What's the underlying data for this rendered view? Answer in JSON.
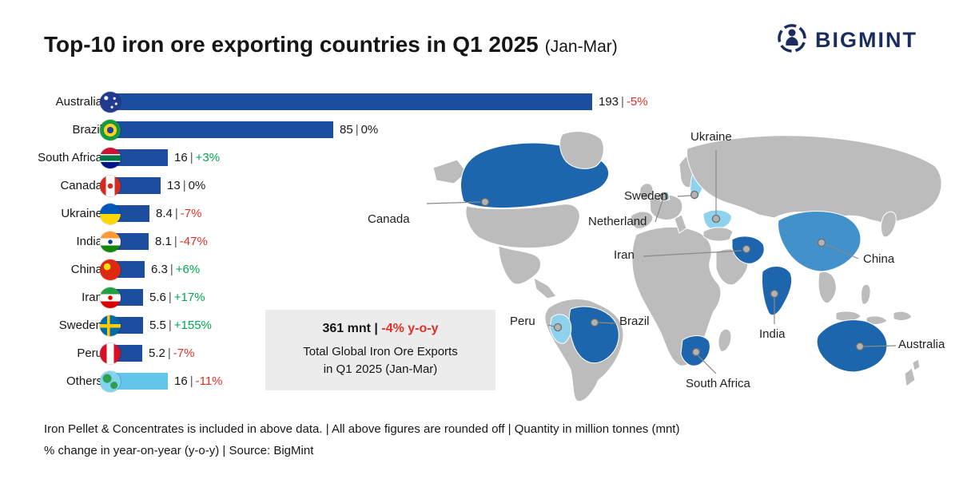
{
  "header": {
    "title": "Top-10 iron ore exporting countries in Q1 2025",
    "title_suffix": "(Jan-Mar)",
    "brand": "BIGMINT"
  },
  "chart_data": {
    "type": "bar",
    "orientation": "horizontal",
    "title": "Top-10 iron ore exporting countries in Q1 2025 (Jan-Mar)",
    "unit": "million tonnes (mnt)",
    "xlim": [
      0,
      193
    ],
    "separator": "|",
    "rows": [
      {
        "country": "Australia",
        "flag": "australia",
        "value": 193,
        "value_label": "193",
        "change": "-5%",
        "change_dir": "down",
        "bar_style": "primary"
      },
      {
        "country": "Brazil",
        "flag": "brazil",
        "value": 85,
        "value_label": "85",
        "change": "0%",
        "change_dir": "flat",
        "bar_style": "primary"
      },
      {
        "country": "South Africa",
        "flag": "south-africa",
        "value": 16,
        "value_label": "16",
        "change": "+3%",
        "change_dir": "up",
        "bar_style": "primary"
      },
      {
        "country": "Canada",
        "flag": "canada",
        "value": 13,
        "value_label": "13",
        "change": "0%",
        "change_dir": "flat",
        "bar_style": "primary"
      },
      {
        "country": "Ukraine",
        "flag": "ukraine",
        "value": 8.4,
        "value_label": "8.4",
        "change": "-7%",
        "change_dir": "down",
        "bar_style": "primary"
      },
      {
        "country": "India",
        "flag": "india",
        "value": 8.1,
        "value_label": "8.1",
        "change": "-47%",
        "change_dir": "down",
        "bar_style": "primary"
      },
      {
        "country": "China",
        "flag": "china",
        "value": 6.3,
        "value_label": "6.3",
        "change": "+6%",
        "change_dir": "up",
        "bar_style": "primary"
      },
      {
        "country": "Iran",
        "flag": "iran",
        "value": 5.6,
        "value_label": "5.6",
        "change": "+17%",
        "change_dir": "up",
        "bar_style": "primary"
      },
      {
        "country": "Sweden",
        "flag": "sweden",
        "value": 5.5,
        "value_label": "5.5",
        "change": "+155%",
        "change_dir": "up",
        "bar_style": "primary"
      },
      {
        "country": "Peru",
        "flag": "peru",
        "value": 5.2,
        "value_label": "5.2",
        "change": "-7%",
        "change_dir": "down",
        "bar_style": "primary"
      },
      {
        "country": "Others",
        "flag": "globe",
        "value": 16,
        "value_label": "16",
        "change": "-11%",
        "change_dir": "down",
        "bar_style": "light"
      }
    ]
  },
  "summary_box": {
    "total": "361 mnt",
    "separator": "|",
    "change": "-4% y-o-y",
    "caption_line1": "Total Global Iron Ore Exports",
    "caption_line2": "in Q1 2025 (Jan-Mar)"
  },
  "map": {
    "labels": [
      {
        "name": "Canada"
      },
      {
        "name": "Ukraine"
      },
      {
        "name": "Sweden"
      },
      {
        "name": "Netherland"
      },
      {
        "name": "Iran"
      },
      {
        "name": "China"
      },
      {
        "name": "Peru"
      },
      {
        "name": "Brazil"
      },
      {
        "name": "India"
      },
      {
        "name": "Australia"
      },
      {
        "name": "South Africa"
      }
    ]
  },
  "footer": {
    "line1": "Iron Pellet & Concentrates is included in above data. | All above figures are rounded off | Quantity in million tonnes (mnt)",
    "line2": "% change in year-on-year (y-o-y) | Source: BigMint"
  },
  "colors": {
    "bar_primary": "#1d4d9f",
    "bar_light": "#63c5e9",
    "positive": "#00a650",
    "negative": "#e03127",
    "flat": "#1a1a1a",
    "map_base": "#bcbcbc",
    "map_highlight": "#1d66ad",
    "map_highlight_mid": "#4391ca",
    "map_highlight_light": "#8fd2ee",
    "brand_navy": "#1b2d5e",
    "box_bg": "#ececec"
  }
}
